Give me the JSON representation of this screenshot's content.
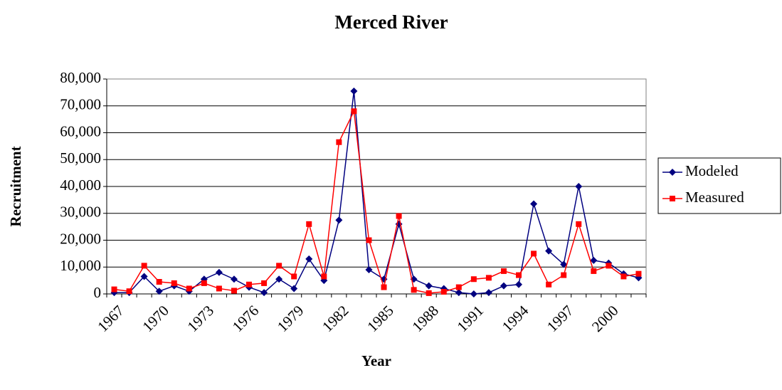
{
  "chart_data": {
    "type": "line",
    "title": "Merced River",
    "x_label": "Year",
    "y_label": "Recruitment",
    "categories": [
      "1967",
      null,
      null,
      "1970",
      null,
      null,
      "1973",
      null,
      null,
      "1976",
      null,
      null,
      "1979",
      null,
      null,
      "1982",
      null,
      null,
      "1985",
      null,
      null,
      "1988",
      null,
      null,
      "1991",
      null,
      null,
      "1994",
      null,
      null,
      "1997",
      null,
      null,
      "2000",
      null,
      null
    ],
    "series": [
      {
        "name": "Modeled",
        "color": "#000080",
        "marker": "diamond",
        "values": [
          500,
          500,
          6500,
          1000,
          3000,
          1000,
          5500,
          8000,
          5500,
          2500,
          500,
          5500,
          2000,
          13000,
          5000,
          27500,
          75500,
          9000,
          5500,
          26000,
          5500,
          3000,
          2000,
          500,
          0,
          500,
          3000,
          3500,
          33500,
          16000,
          11000,
          40000,
          12500,
          11500,
          7500,
          6000
        ]
      },
      {
        "name": "Measured",
        "color": "#ff0000",
        "marker": "square",
        "values": [
          1700,
          1000,
          10500,
          4500,
          4000,
          2000,
          4000,
          2000,
          1200,
          3500,
          4000,
          10500,
          6500,
          26000,
          6500,
          56500,
          68000,
          20000,
          2500,
          29000,
          1500,
          300,
          800,
          2500,
          5500,
          6000,
          8500,
          7000,
          15000,
          3500,
          7000,
          26000,
          8500,
          10500,
          6500,
          7500
        ]
      }
    ],
    "ylim": [
      0,
      80000
    ],
    "yticks": [
      0,
      {
        "value": 10000,
        "label": "10,000"
      },
      {
        "value": 20000,
        "label": "20,000"
      },
      {
        "value": 30000,
        "label": "30,000"
      },
      {
        "value": 40000,
        "label": "40,000"
      },
      {
        "value": 50000,
        "label": "50,000"
      },
      {
        "value": 60000,
        "label": "60,000"
      },
      {
        "value": 70000,
        "label": "70,000"
      },
      {
        "value": 80000,
        "label": "80,000"
      }
    ],
    "grid": true,
    "legend": "right"
  }
}
